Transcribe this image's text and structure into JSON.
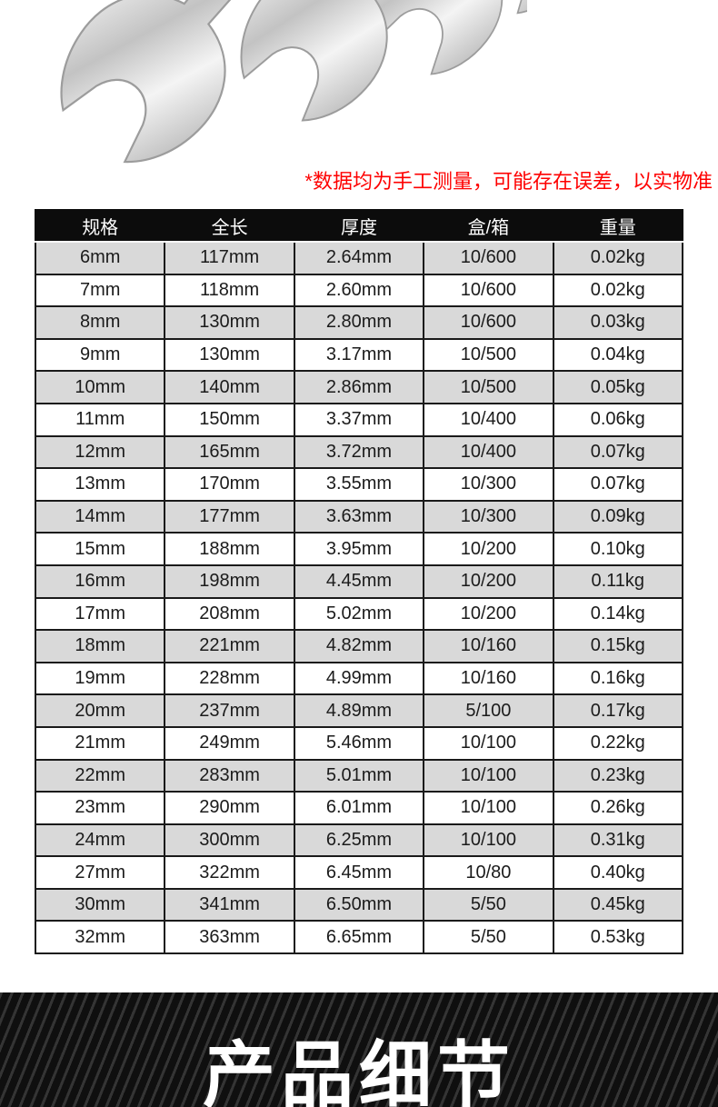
{
  "hero": {
    "image_name": "chrome-open-end-wrenches-photo"
  },
  "disclaimer": {
    "text": "*数据均为手工测量，可能存在误差，以实物准",
    "color": "#fe0000"
  },
  "table": {
    "headers": [
      "规格",
      "全长",
      "厚度",
      "盒/箱",
      "重量"
    ],
    "rows": [
      [
        "6mm",
        "117mm",
        "2.64mm",
        "10/600",
        "0.02kg"
      ],
      [
        "7mm",
        "118mm",
        "2.60mm",
        "10/600",
        "0.02kg"
      ],
      [
        "8mm",
        "130mm",
        "2.80mm",
        "10/600",
        "0.03kg"
      ],
      [
        "9mm",
        "130mm",
        "3.17mm",
        "10/500",
        "0.04kg"
      ],
      [
        "10mm",
        "140mm",
        "2.86mm",
        "10/500",
        "0.05kg"
      ],
      [
        "11mm",
        "150mm",
        "3.37mm",
        "10/400",
        "0.06kg"
      ],
      [
        "12mm",
        "165mm",
        "3.72mm",
        "10/400",
        "0.07kg"
      ],
      [
        "13mm",
        "170mm",
        "3.55mm",
        "10/300",
        "0.07kg"
      ],
      [
        "14mm",
        "177mm",
        "3.63mm",
        "10/300",
        "0.09kg"
      ],
      [
        "15mm",
        "188mm",
        "3.95mm",
        "10/200",
        "0.10kg"
      ],
      [
        "16mm",
        "198mm",
        "4.45mm",
        "10/200",
        "0.11kg"
      ],
      [
        "17mm",
        "208mm",
        "5.02mm",
        "10/200",
        "0.14kg"
      ],
      [
        "18mm",
        "221mm",
        "4.82mm",
        "10/160",
        "0.15kg"
      ],
      [
        "19mm",
        "228mm",
        "4.99mm",
        "10/160",
        "0.16kg"
      ],
      [
        "20mm",
        "237mm",
        "4.89mm",
        "5/100",
        "0.17kg"
      ],
      [
        "21mm",
        "249mm",
        "5.46mm",
        "10/100",
        "0.22kg"
      ],
      [
        "22mm",
        "283mm",
        "5.01mm",
        "10/100",
        "0.23kg"
      ],
      [
        "23mm",
        "290mm",
        "6.01mm",
        "10/100",
        "0.26kg"
      ],
      [
        "24mm",
        "300mm",
        "6.25mm",
        "10/100",
        "0.31kg"
      ],
      [
        "27mm",
        "322mm",
        "6.45mm",
        "10/80",
        "0.40kg"
      ],
      [
        "30mm",
        "341mm",
        "6.50mm",
        "5/50",
        "0.45kg"
      ],
      [
        "32mm",
        "363mm",
        "6.65mm",
        "5/50",
        "0.53kg"
      ]
    ]
  },
  "banner": {
    "title": "产品细节"
  },
  "colors": {
    "header_bg": "#0c0c0c",
    "row_alt_bg": "#d9d9d9",
    "table_border": "#1a1a1a",
    "banner_dark": "#0f0f0f",
    "banner_stripe": "#343434"
  }
}
